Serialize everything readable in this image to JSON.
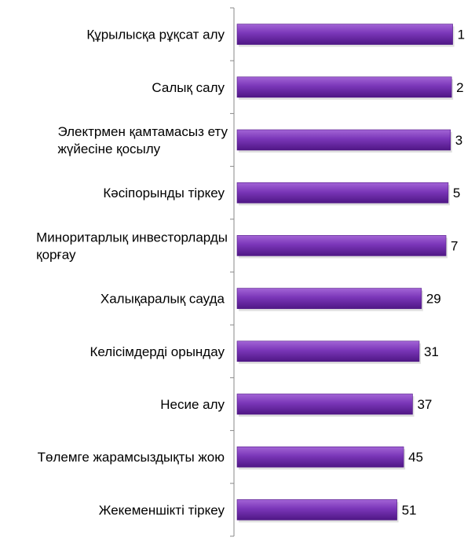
{
  "chart_data": {
    "type": "bar",
    "orientation": "horizontal",
    "title": "",
    "xlabel": "",
    "ylabel": "",
    "categories": [
      [
        "Құрылысқа рұқсат алу"
      ],
      [
        "Салық салу"
      ],
      [
        "Электрмен қамтамасыз ету",
        "жүйесіне қосылу"
      ],
      [
        "Кәсіпорынды тіркеу"
      ],
      [
        "Миноритарлық инвесторларды",
        "қорғау"
      ],
      [
        "Халықаралық сауда"
      ],
      [
        "Келісімдерді орындау"
      ],
      [
        "Несие алу"
      ],
      [
        "Төлемге жарамсыздықты жою"
      ],
      [
        "Жекеменшікті тіркеу"
      ]
    ],
    "values": [
      1,
      2,
      3,
      5,
      7,
      29,
      31,
      37,
      45,
      51
    ],
    "xlim": [
      150,
      0
    ],
    "axis_reversed": true,
    "grid": false,
    "legend": "none",
    "colors": {
      "bar_light": "#a365d6",
      "bar_main": "#7a36b8",
      "bar_dark": "#4f1785",
      "axis": "#898989",
      "text": "#000000"
    }
  }
}
